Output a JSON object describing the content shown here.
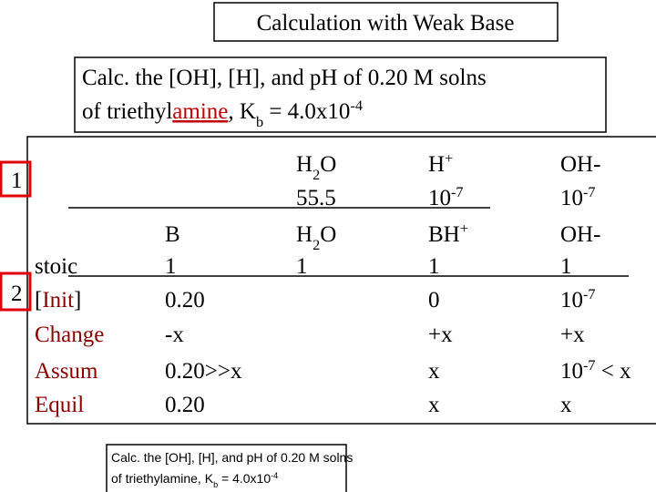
{
  "title": "Calculation with Weak Base",
  "problem": {
    "lines": [
      [
        {
          "text": "Calc. the [OH], [H], and pH of 0.20 M solns"
        }
      ],
      [
        {
          "text": "of  triethyl"
        },
        {
          "text": "amine",
          "color": "#c00000",
          "underline": true
        },
        {
          "text": ", K"
        },
        {
          "sub": "b"
        },
        {
          "text": " = 4.0x10"
        },
        {
          "sup": "-4"
        }
      ]
    ]
  },
  "steps": [
    "1",
    "2"
  ],
  "table": {
    "rows": [
      {
        "label": null,
        "cells": [
          null,
          [
            {
              "text": "H"
            },
            {
              "sub": "2"
            },
            {
              "text": "O"
            }
          ],
          [
            {
              "text": "H"
            },
            {
              "sup": "+"
            }
          ],
          [
            {
              "text": "OH-"
            }
          ]
        ]
      },
      {
        "label": null,
        "cells": [
          null,
          [
            {
              "text": "55.5"
            }
          ],
          [
            {
              "text": "10"
            },
            {
              "sup": "-7"
            }
          ],
          [
            {
              "text": "10"
            },
            {
              "sup": "-7"
            }
          ]
        ]
      },
      {
        "label": null,
        "cells": [
          [
            {
              "text": "B"
            }
          ],
          [
            {
              "text": "H"
            },
            {
              "sub": "2"
            },
            {
              "text": "O"
            }
          ],
          [
            {
              "text": "BH"
            },
            {
              "sup": "+"
            }
          ],
          [
            {
              "text": "OH-"
            }
          ]
        ]
      },
      {
        "label": [
          {
            "text": "stoic"
          }
        ],
        "cells": [
          [
            {
              "text": "1"
            }
          ],
          [
            {
              "text": "1"
            }
          ],
          [
            {
              "text": "1"
            }
          ],
          [
            {
              "text": "1"
            }
          ]
        ]
      },
      {
        "label": [
          {
            "text": "["
          },
          {
            "text": "Init",
            "color": "#8b0000"
          },
          {
            "text": "]"
          }
        ],
        "cells": [
          [
            {
              "text": "0.20"
            }
          ],
          null,
          [
            {
              "text": "0"
            }
          ],
          [
            {
              "text": "10"
            },
            {
              "sup": "-7"
            }
          ]
        ]
      },
      {
        "label": [
          {
            "text": "Change",
            "color": "#8b0000"
          }
        ],
        "cells": [
          [
            {
              "text": "-x"
            }
          ],
          null,
          [
            {
              "text": "+x"
            }
          ],
          [
            {
              "text": "+x"
            }
          ]
        ]
      },
      {
        "label": [
          {
            "text": "Assum",
            "color": "#8b0000"
          }
        ],
        "cells": [
          [
            {
              "text": "0.20>>x"
            }
          ],
          null,
          [
            {
              "text": "x"
            }
          ],
          [
            {
              "text": "10"
            },
            {
              "sup": "-7"
            },
            {
              "text": " < x"
            }
          ]
        ]
      },
      {
        "label": [
          {
            "text": "Equil",
            "color": "#8b0000"
          }
        ],
        "cells": [
          [
            {
              "text": "0.20"
            }
          ],
          null,
          [
            {
              "text": "x"
            }
          ],
          [
            {
              "text": "x"
            }
          ]
        ]
      }
    ]
  },
  "note": {
    "lines": [
      [
        {
          "text": "Calc. the [OH], [H], and pH of 0.20 M solns"
        }
      ],
      [
        {
          "text": "of  triethylamine, K"
        },
        {
          "sub": "b"
        },
        {
          "text": " = 4.0x10"
        },
        {
          "sup": "-4"
        }
      ]
    ]
  }
}
